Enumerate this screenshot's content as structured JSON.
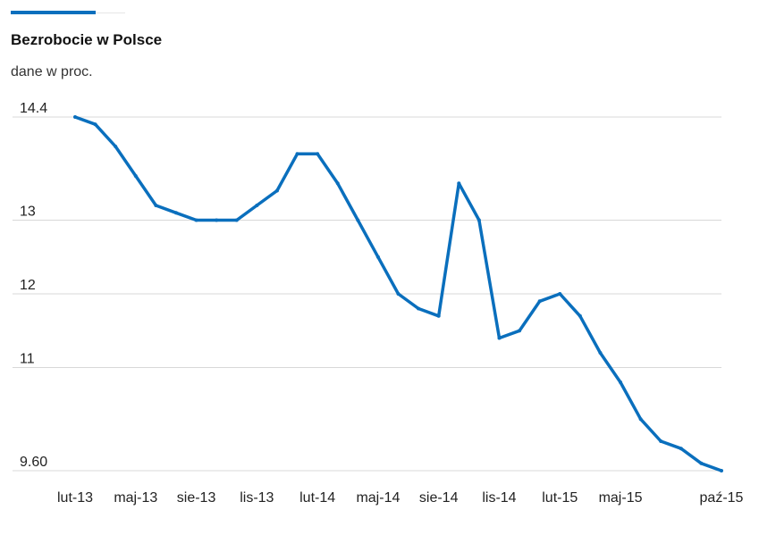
{
  "chart_data": {
    "type": "line",
    "title": "Bezrobocie w Polsce",
    "subtitle": "dane w proc.",
    "ylim": [
      9.6,
      14.4
    ],
    "yticks": [
      {
        "value": 14.4,
        "label": "14.4"
      },
      {
        "value": 13,
        "label": "13"
      },
      {
        "value": 12,
        "label": "12"
      },
      {
        "value": 11,
        "label": "11"
      },
      {
        "value": 9.6,
        "label": "9.60"
      }
    ],
    "xticks": [
      {
        "index": 0,
        "label": "lut-13"
      },
      {
        "index": 3,
        "label": "maj-13"
      },
      {
        "index": 6,
        "label": "sie-13"
      },
      {
        "index": 9,
        "label": "lis-13"
      },
      {
        "index": 12,
        "label": "lut-14"
      },
      {
        "index": 15,
        "label": "maj-14"
      },
      {
        "index": 18,
        "label": "sie-14"
      },
      {
        "index": 21,
        "label": "lis-14"
      },
      {
        "index": 24,
        "label": "lut-15"
      },
      {
        "index": 27,
        "label": "maj-15"
      },
      {
        "index": 32,
        "label": "paź-15"
      }
    ],
    "series": [
      {
        "color": "#0a6fbd",
        "values": [
          14.4,
          14.3,
          14.0,
          13.6,
          13.2,
          13.1,
          13.0,
          13.0,
          13.0,
          13.2,
          13.4,
          13.9,
          13.9,
          13.5,
          13.0,
          12.5,
          12.0,
          11.8,
          11.7,
          13.5,
          13.0,
          11.4,
          11.5,
          11.9,
          12.0,
          11.7,
          11.2,
          10.8,
          10.3,
          10.0,
          9.9,
          9.7,
          9.6
        ]
      }
    ],
    "grid": true
  }
}
